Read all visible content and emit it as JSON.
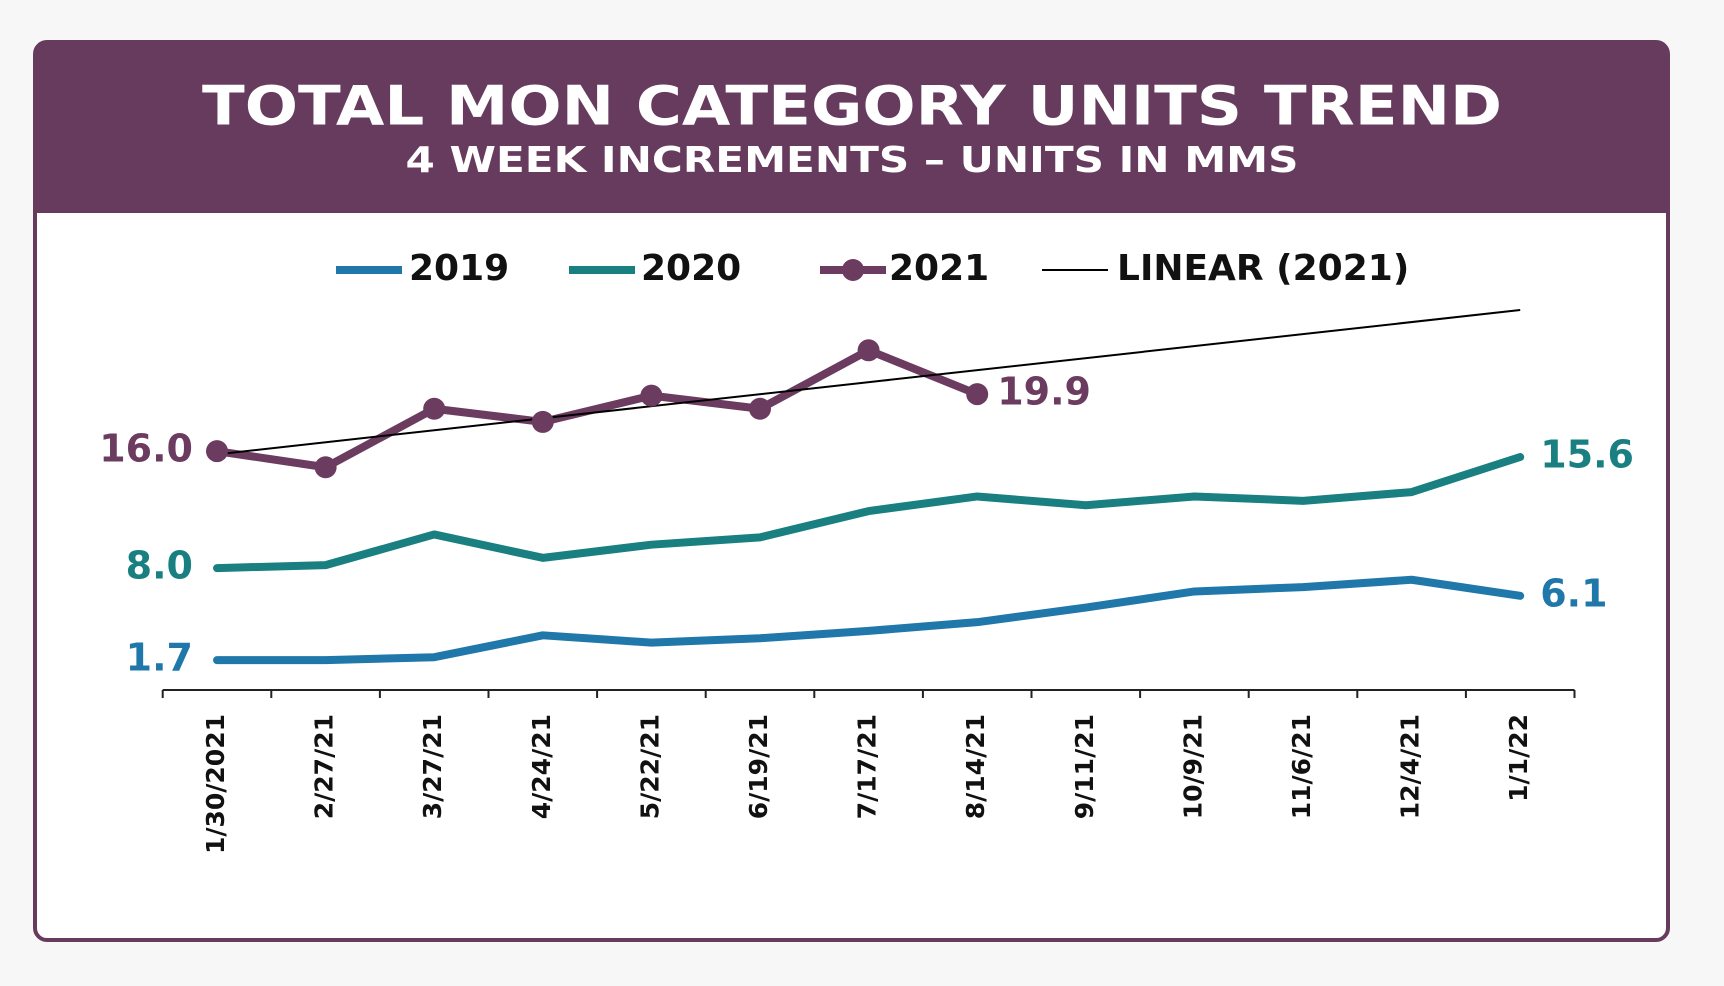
{
  "chart_data": {
    "type": "line",
    "title": "TOTAL MON CATEGORY UNITS TREND",
    "subtitle": "4 WEEK INCREMENTS – UNITS IN MMS",
    "categories": [
      "1/30/2021",
      "2/27/21",
      "3/27/21",
      "4/24/21",
      "5/22/21",
      "6/19/21",
      "7/17/21",
      "8/14/21",
      "9/11/21",
      "10/9/21",
      "11/6/21",
      "12/4/21",
      "1/1/22"
    ],
    "series": [
      {
        "name": "2019",
        "color": "#1f77aa",
        "values": [
          1.7,
          1.7,
          1.9,
          3.4,
          2.9,
          3.2,
          3.7,
          4.3,
          5.3,
          6.4,
          6.7,
          7.2,
          6.1
        ],
        "value_labels": [
          "1.7",
          null,
          null,
          null,
          null,
          null,
          null,
          null,
          null,
          null,
          null,
          null,
          "6.1"
        ]
      },
      {
        "name": "2020",
        "color": "#197f80",
        "values": [
          8.0,
          8.2,
          10.3,
          8.7,
          9.6,
          10.1,
          11.9,
          12.9,
          12.3,
          12.9,
          12.6,
          13.2,
          15.6
        ],
        "value_labels": [
          "8.0",
          null,
          null,
          null,
          null,
          null,
          null,
          null,
          null,
          null,
          null,
          null,
          "15.6"
        ]
      },
      {
        "name": "2021",
        "color": "#6b3b60",
        "markers": true,
        "values": [
          16.0,
          14.9,
          18.9,
          18.0,
          19.8,
          18.9,
          22.9,
          19.9,
          null,
          null,
          null,
          null,
          null
        ],
        "value_labels": [
          "16.0",
          null,
          null,
          null,
          null,
          null,
          null,
          "19.9",
          null,
          null,
          null,
          null,
          null
        ]
      }
    ],
    "trendline": {
      "name": "LINEAR (2021)",
      "series": 2,
      "color": "#000000"
    },
    "ylim": [
      0,
      26
    ]
  }
}
